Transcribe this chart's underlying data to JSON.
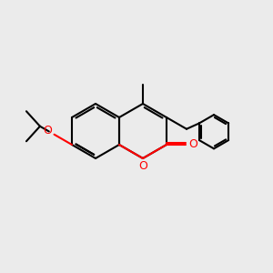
{
  "bg_color": "#ebebeb",
  "bond_color": "#000000",
  "o_color": "#ff0000",
  "lw": 1.5,
  "figsize": [
    3.0,
    3.0
  ],
  "dpi": 100,
  "xlim": [
    0,
    10
  ],
  "ylim": [
    0,
    10
  ]
}
